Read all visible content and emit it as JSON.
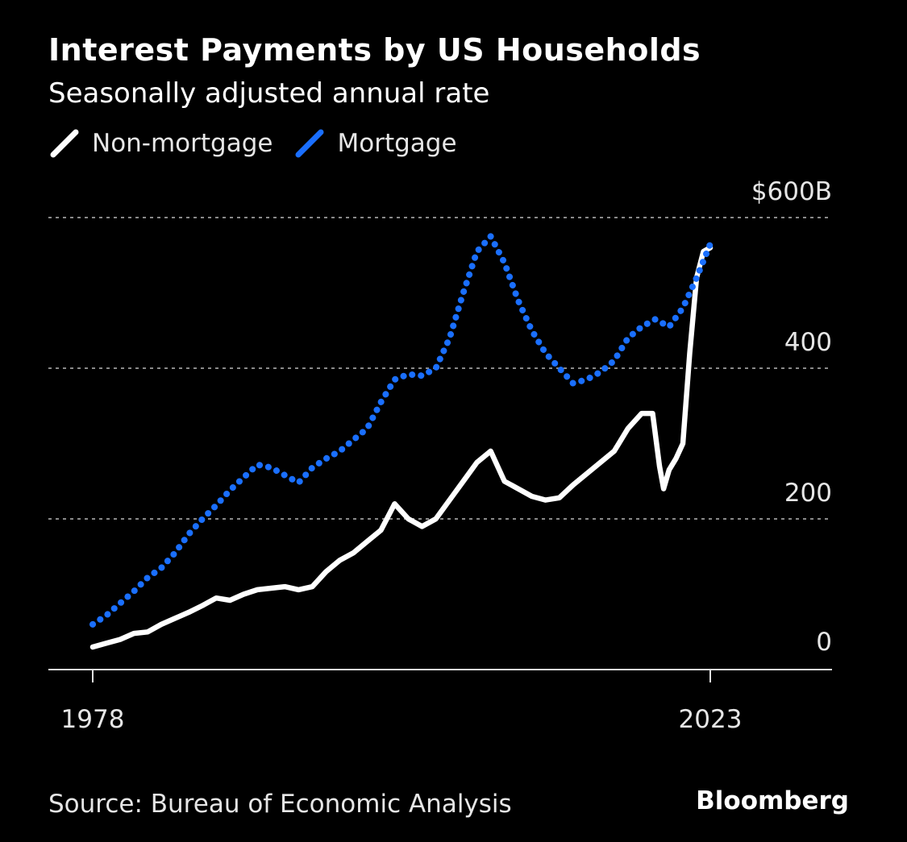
{
  "chart_data": {
    "type": "line",
    "title": "Interest Payments by US Households",
    "subtitle": "Seasonally adjusted annual rate",
    "source": "Source: Bureau of Economic Analysis",
    "brand": "Bloomberg",
    "xlim": [
      1978,
      2023
    ],
    "ylim": [
      0,
      600
    ],
    "y_ticks": [
      {
        "value": 0,
        "label": "0"
      },
      {
        "value": 200,
        "label": "200"
      },
      {
        "value": 400,
        "label": "400"
      },
      {
        "value": 600,
        "label": "$600B"
      }
    ],
    "x_ticks": [
      {
        "value": 1978,
        "label": "1978"
      },
      {
        "value": 2023,
        "label": "2023"
      }
    ],
    "grid": true,
    "legend_position": "top-left",
    "series": [
      {
        "name": "Non-mortgage",
        "color": "#ffffff",
        "style": "solid",
        "points": [
          [
            1978,
            30
          ],
          [
            1979,
            35
          ],
          [
            1980,
            40
          ],
          [
            1981,
            48
          ],
          [
            1982,
            50
          ],
          [
            1983,
            60
          ],
          [
            1984,
            68
          ],
          [
            1985,
            76
          ],
          [
            1986,
            85
          ],
          [
            1987,
            95
          ],
          [
            1988,
            92
          ],
          [
            1989,
            100
          ],
          [
            1990,
            106
          ],
          [
            1991,
            108
          ],
          [
            1992,
            110
          ],
          [
            1993,
            106
          ],
          [
            1994,
            110
          ],
          [
            1995,
            130
          ],
          [
            1996,
            145
          ],
          [
            1997,
            155
          ],
          [
            1998,
            170
          ],
          [
            1999,
            185
          ],
          [
            2000,
            220
          ],
          [
            2001,
            200
          ],
          [
            2002,
            190
          ],
          [
            2003,
            200
          ],
          [
            2004,
            225
          ],
          [
            2005,
            250
          ],
          [
            2006,
            275
          ],
          [
            2007,
            290
          ],
          [
            2008,
            250
          ],
          [
            2009,
            240
          ],
          [
            2010,
            230
          ],
          [
            2011,
            225
          ],
          [
            2012,
            228
          ],
          [
            2013,
            245
          ],
          [
            2014,
            260
          ],
          [
            2015,
            275
          ],
          [
            2016,
            290
          ],
          [
            2017,
            320
          ],
          [
            2018,
            340
          ],
          [
            2018.8,
            340
          ],
          [
            2019.3,
            270
          ],
          [
            2019.6,
            240
          ],
          [
            2020,
            265
          ],
          [
            2020.5,
            280
          ],
          [
            2021,
            300
          ],
          [
            2021.5,
            420
          ],
          [
            2022,
            520
          ],
          [
            2022.5,
            555
          ],
          [
            2023,
            560
          ]
        ]
      },
      {
        "name": "Mortgage",
        "color": "#1a6fff",
        "style": "dotted",
        "points": [
          [
            1978,
            60
          ],
          [
            1979,
            72
          ],
          [
            1980,
            88
          ],
          [
            1981,
            104
          ],
          [
            1982,
            122
          ],
          [
            1983,
            135
          ],
          [
            1984,
            155
          ],
          [
            1985,
            180
          ],
          [
            1986,
            200
          ],
          [
            1987,
            218
          ],
          [
            1988,
            238
          ],
          [
            1989,
            255
          ],
          [
            1990,
            272
          ],
          [
            1991,
            268
          ],
          [
            1992,
            258
          ],
          [
            1993,
            248
          ],
          [
            1994,
            268
          ],
          [
            1995,
            280
          ],
          [
            1996,
            290
          ],
          [
            1997,
            305
          ],
          [
            1998,
            320
          ],
          [
            1999,
            355
          ],
          [
            2000,
            385
          ],
          [
            2001,
            392
          ],
          [
            2002,
            390
          ],
          [
            2003,
            400
          ],
          [
            2004,
            440
          ],
          [
            2005,
            500
          ],
          [
            2006,
            555
          ],
          [
            2007,
            575
          ],
          [
            2008,
            540
          ],
          [
            2009,
            490
          ],
          [
            2010,
            450
          ],
          [
            2011,
            420
          ],
          [
            2012,
            400
          ],
          [
            2013,
            380
          ],
          [
            2014,
            385
          ],
          [
            2015,
            395
          ],
          [
            2016,
            410
          ],
          [
            2017,
            440
          ],
          [
            2018,
            455
          ],
          [
            2019,
            465
          ],
          [
            2020,
            455
          ],
          [
            2021,
            480
          ],
          [
            2022,
            520
          ],
          [
            2023,
            565
          ]
        ]
      }
    ]
  }
}
